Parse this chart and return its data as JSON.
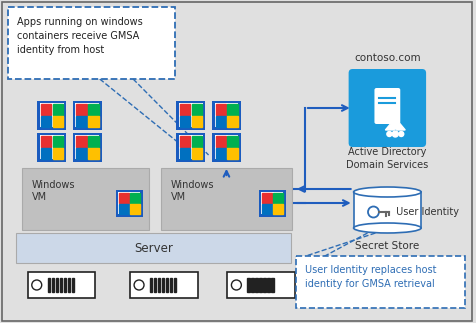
{
  "bg_color": "#e0e0e0",
  "blue_dark": "#1f4e9c",
  "blue_arrow": "#1f5dbe",
  "blue_icon": "#1a9bdc",
  "blue_dashed": "#2e6db4",
  "server_fill": "#ccd8e8",
  "vm_fill": "#c0c0c0",
  "white": "#ffffff",
  "text_dark": "#333333",
  "callout_text": "Apps running on windows\ncontainers receive GMSA\nidentity from host",
  "bottom_text": "User Identity replaces host\nidentity for GMSA retrieval",
  "label_ad_title": "contoso.com",
  "label_ad": "Active Directory\nDomain Services",
  "label_secret": "Secret Store",
  "label_user": " User Identity",
  "label_server": "Server",
  "label_vm": "Windows\nVM"
}
